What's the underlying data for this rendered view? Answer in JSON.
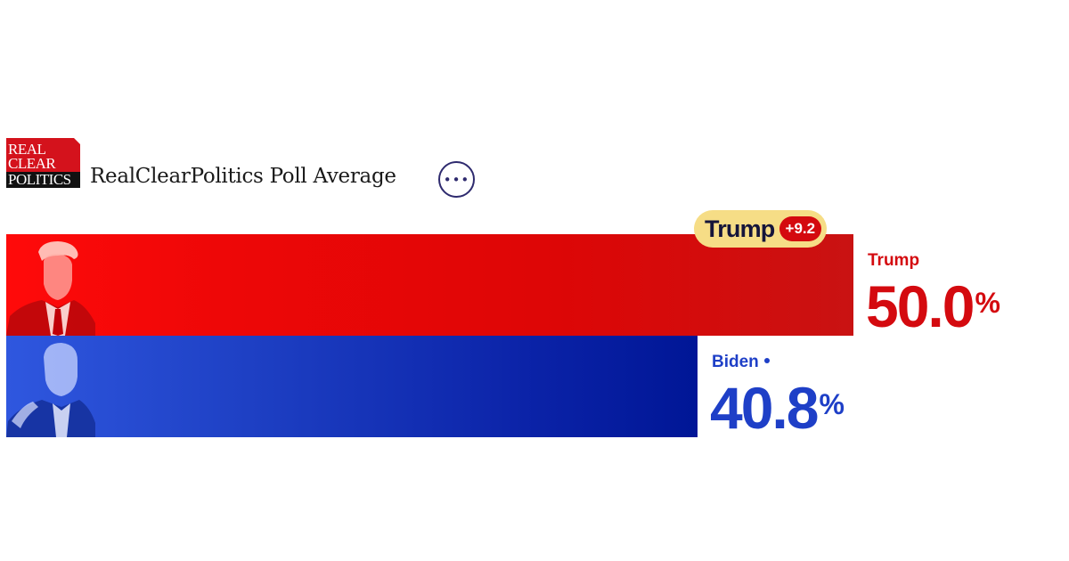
{
  "header": {
    "logo_lines": [
      "REAL",
      "CLEAR",
      "POLITICS"
    ],
    "title": "RealClearPolitics Poll Average",
    "more_icon": "ellipsis-icon",
    "more_label": "•••"
  },
  "colors": {
    "trump": "#d40a0f",
    "biden": "#1e3fc7",
    "badge": "#f6dd86"
  },
  "chart_data": {
    "type": "bar",
    "orientation": "horizontal",
    "title": "RealClearPolitics Poll Average",
    "categories": [
      "Trump",
      "Biden"
    ],
    "values": [
      50.0,
      40.8
    ],
    "display_values": [
      "50.0",
      "40.8"
    ],
    "unit": "%",
    "lead": {
      "name": "Trump",
      "margin": "+9.2"
    },
    "grid": false,
    "legend": "none"
  }
}
